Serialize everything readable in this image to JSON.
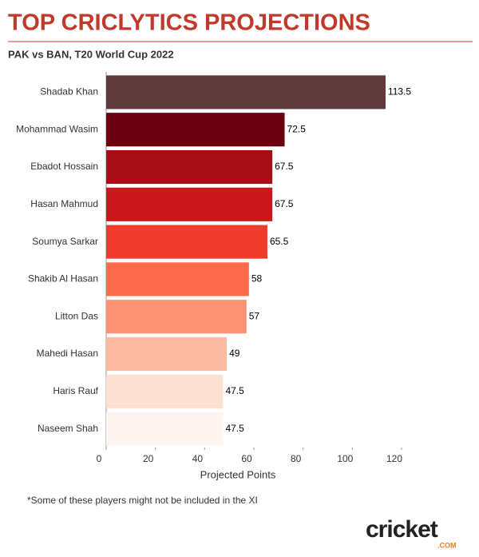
{
  "chart_data": {
    "type": "bar",
    "orientation": "horizontal",
    "title": "TOP CRICLYTICS PROJECTIONS",
    "subtitle": "PAK vs BAN, T20 World Cup 2022",
    "x_label": "Projected Points",
    "categories": [
      "Shadab Khan",
      "Mohammad Wasim",
      "Ebadot Hossain",
      "Hasan Mahmud",
      "Soumya Sarkar",
      "Shakib Al Hasan",
      "Litton Das",
      "Mahedi Hasan",
      "Haris Rauf",
      "Naseem Shah"
    ],
    "values": [
      113.5,
      72.5,
      67.5,
      67.5,
      65.5,
      58,
      57,
      49,
      47.5,
      47.5
    ],
    "colors": [
      "#5e3a3d",
      "#6b0010",
      "#a50f15",
      "#cb181d",
      "#ef3b2c",
      "#fb6a4a",
      "#fc9272",
      "#fcbba1",
      "#fee0d2",
      "#fff5f0"
    ],
    "xlim": [
      0,
      120
    ],
    "xticks": [
      0,
      20,
      40,
      60,
      80,
      100,
      120
    ],
    "footnote": "*Some of these players might not be included in the XI",
    "logo": {
      "text": "cricket",
      "suffix": ".COM"
    }
  }
}
